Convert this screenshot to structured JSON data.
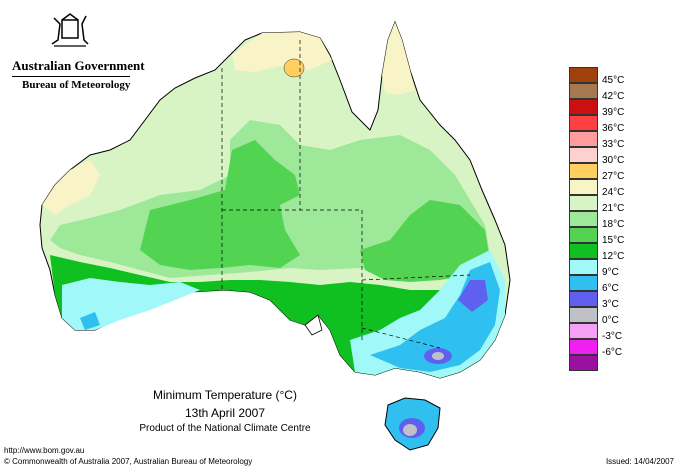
{
  "header": {
    "government": "Australian Government",
    "bureau": "Bureau of Meteorology"
  },
  "legend": [
    {
      "label": "45°C",
      "color": "#a0400a"
    },
    {
      "label": "42°C",
      "color": "#a57850"
    },
    {
      "label": "39°C",
      "color": "#cc1010"
    },
    {
      "label": "36°C",
      "color": "#ff4040"
    },
    {
      "label": "33°C",
      "color": "#ff9d9d"
    },
    {
      "label": "30°C",
      "color": "#ffd0d0"
    },
    {
      "label": "27°C",
      "color": "#ffd060"
    },
    {
      "label": "24°C",
      "color": "#f8f4c8"
    },
    {
      "label": "21°C",
      "color": "#d8f4c4"
    },
    {
      "label": "18°C",
      "color": "#9ee89a"
    },
    {
      "label": "15°C",
      "color": "#52d452"
    },
    {
      "label": "12°C",
      "color": "#10c020"
    },
    {
      "label": "9°C",
      "color": "#a0f8f8"
    },
    {
      "label": "6°C",
      "color": "#30c0f0"
    },
    {
      "label": "3°C",
      "color": "#6060f0"
    },
    {
      "label": "0°C",
      "color": "#c0c0c8"
    },
    {
      "label": "-3°C",
      "color": "#f4a0f4"
    },
    {
      "label": "-6°C",
      "color": "#f020f0"
    },
    {
      "label": "",
      "color": "#9a10a0"
    }
  ],
  "map": {
    "title": "Minimum Temperature (°C)",
    "date": "13th April 2007",
    "product": "Product of the National Climate Centre"
  },
  "footer": {
    "url": "http://www.bom.gov.au",
    "copyright": "© Commonwealth of Australia 2007, Australian Bureau of Meteorology",
    "issued": "Issued: 14/04/2007"
  }
}
